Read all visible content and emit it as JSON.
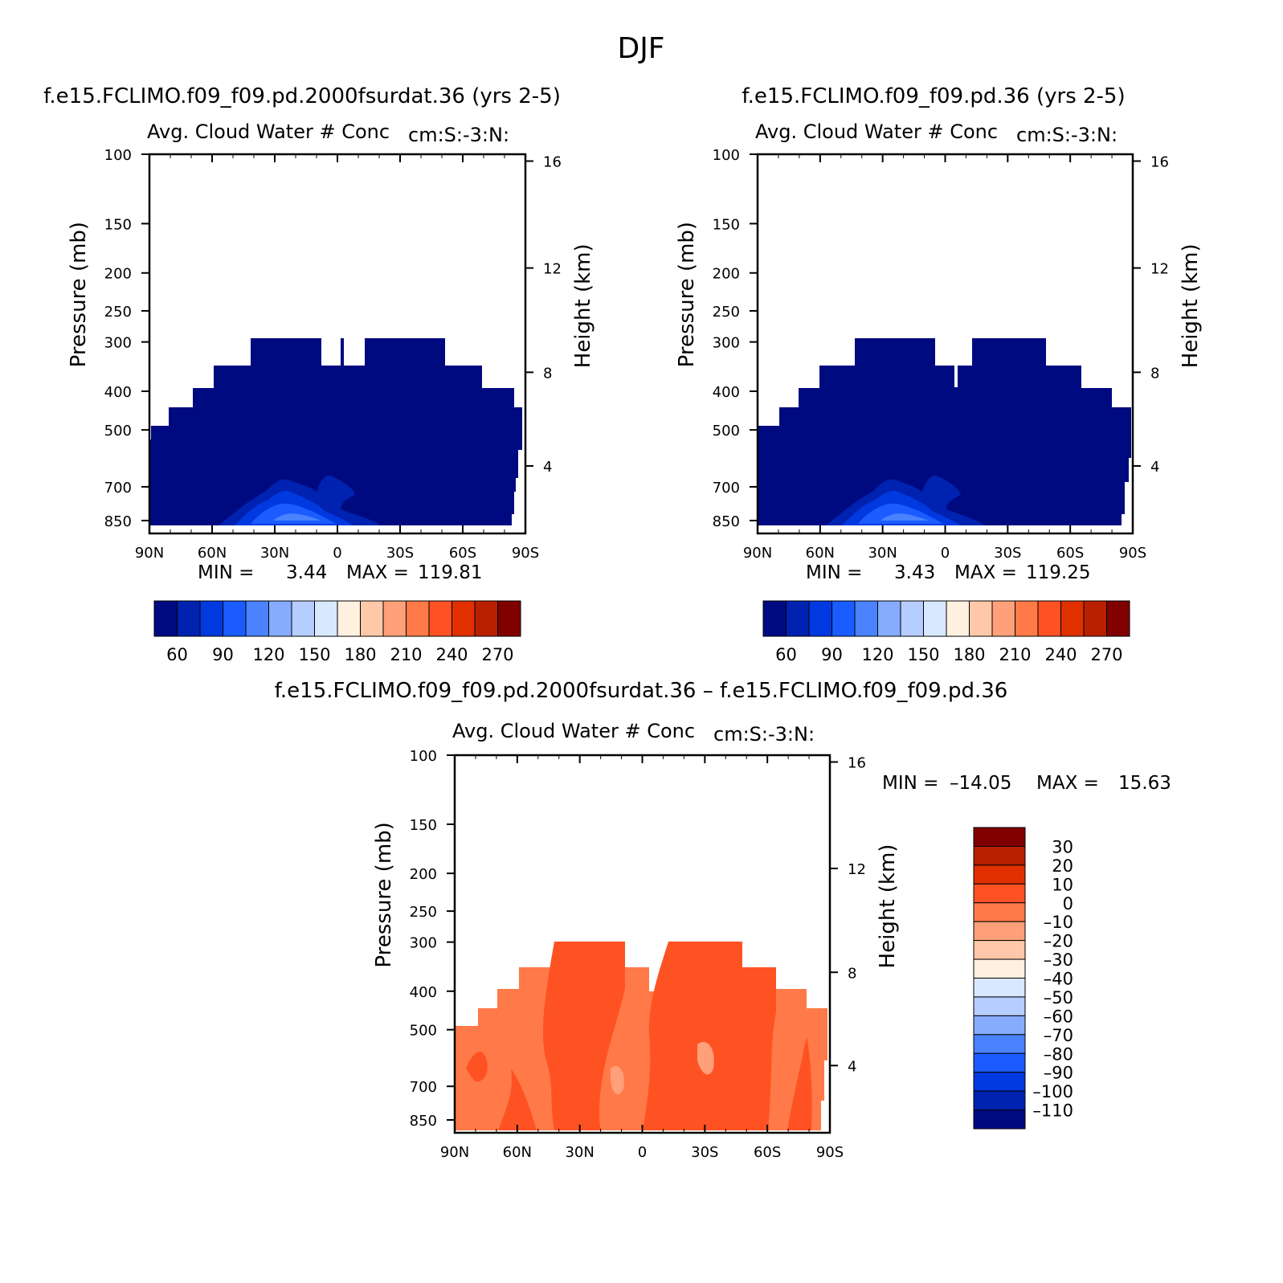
{
  "page_title": "DJF",
  "colors": {
    "seq": [
      "#000a80",
      "#0022b0",
      "#0039e0",
      "#1a5cff",
      "#4a82ff",
      "#86acff",
      "#b5cdff",
      "#d8e8ff",
      "#fff0e0",
      "#ffc8a8",
      "#ffa07a",
      "#ff7a48",
      "#ff5222",
      "#e03000",
      "#b82000",
      "#800000"
    ],
    "diff": [
      "#800000",
      "#b82000",
      "#e03000",
      "#ff5222",
      "#ff7a48",
      "#ffa07a",
      "#ffc8a8",
      "#fff0e0",
      "#d8e8ff",
      "#b5cdff",
      "#86acff",
      "#4a82ff",
      "#1a5cff",
      "#0039e0",
      "#0022b0",
      "#000a80"
    ]
  },
  "chart_data": [
    {
      "type": "heatmap",
      "title": "f.e15.FCLIMO.f09_f09.pd.2000fsurdat.36 (yrs 2-5)",
      "subtitle": "Avg. Cloud Water # Conc",
      "units": "cm:S:-3:N:",
      "xlabel": "",
      "ylabel": "Pressure (mb)",
      "y2label": "Height (km)",
      "x_ticks": [
        "90N",
        "60N",
        "30N",
        "0",
        "30S",
        "60S",
        "90S"
      ],
      "y_ticks": [
        "100",
        "150",
        "200",
        "250",
        "300",
        "400",
        "500",
        "700",
        "850"
      ],
      "y2_ticks": [
        "16",
        "12",
        "8",
        "4"
      ],
      "xlim": [
        90,
        -90
      ],
      "ylim": [
        1000,
        100
      ],
      "min_label": "MIN =",
      "min_value": "3.44",
      "max_label": "MAX =",
      "max_value": "119.81",
      "colorbar_labels": [
        "60",
        "90",
        "120",
        "150",
        "180",
        "210",
        "240",
        "270"
      ]
    },
    {
      "type": "heatmap",
      "title": "f.e15.FCLIMO.f09_f09.pd.36 (yrs 2-5)",
      "subtitle": "Avg. Cloud Water # Conc",
      "units": "cm:S:-3:N:",
      "xlabel": "",
      "ylabel": "Pressure (mb)",
      "y2label": "Height (km)",
      "x_ticks": [
        "90N",
        "60N",
        "30N",
        "0",
        "30S",
        "60S",
        "90S"
      ],
      "y_ticks": [
        "100",
        "150",
        "200",
        "250",
        "300",
        "400",
        "500",
        "700",
        "850"
      ],
      "y2_ticks": [
        "16",
        "12",
        "8",
        "4"
      ],
      "xlim": [
        90,
        -90
      ],
      "ylim": [
        1000,
        100
      ],
      "min_label": "MIN =",
      "min_value": "3.43",
      "max_label": "MAX =",
      "max_value": "119.25",
      "colorbar_labels": [
        "60",
        "90",
        "120",
        "150",
        "180",
        "210",
        "240",
        "270"
      ]
    },
    {
      "type": "heatmap",
      "title": "f.e15.FCLIMO.f09_f09.pd.2000fsurdat.36 – f.e15.FCLIMO.f09_f09.pd.36",
      "subtitle": "Avg. Cloud Water # Conc",
      "units": "cm:S:-3:N:",
      "xlabel": "",
      "ylabel": "Pressure (mb)",
      "y2label": "Height (km)",
      "x_ticks": [
        "90N",
        "60N",
        "30N",
        "0",
        "30S",
        "60S",
        "90S"
      ],
      "y_ticks": [
        "100",
        "150",
        "200",
        "250",
        "300",
        "400",
        "500",
        "700",
        "850"
      ],
      "y2_ticks": [
        "16",
        "12",
        "8",
        "4"
      ],
      "xlim": [
        90,
        -90
      ],
      "ylim": [
        1000,
        100
      ],
      "min_label": "MIN =",
      "min_value": "–14.05",
      "max_label": "MAX =",
      "max_value": "15.63",
      "colorbar_labels": [
        "30",
        "20",
        "10",
        "0",
        "–10",
        "–20",
        "–30",
        "–40",
        "–50",
        "–60",
        "–70",
        "–80",
        "–90",
        "–100",
        "–110"
      ]
    }
  ]
}
